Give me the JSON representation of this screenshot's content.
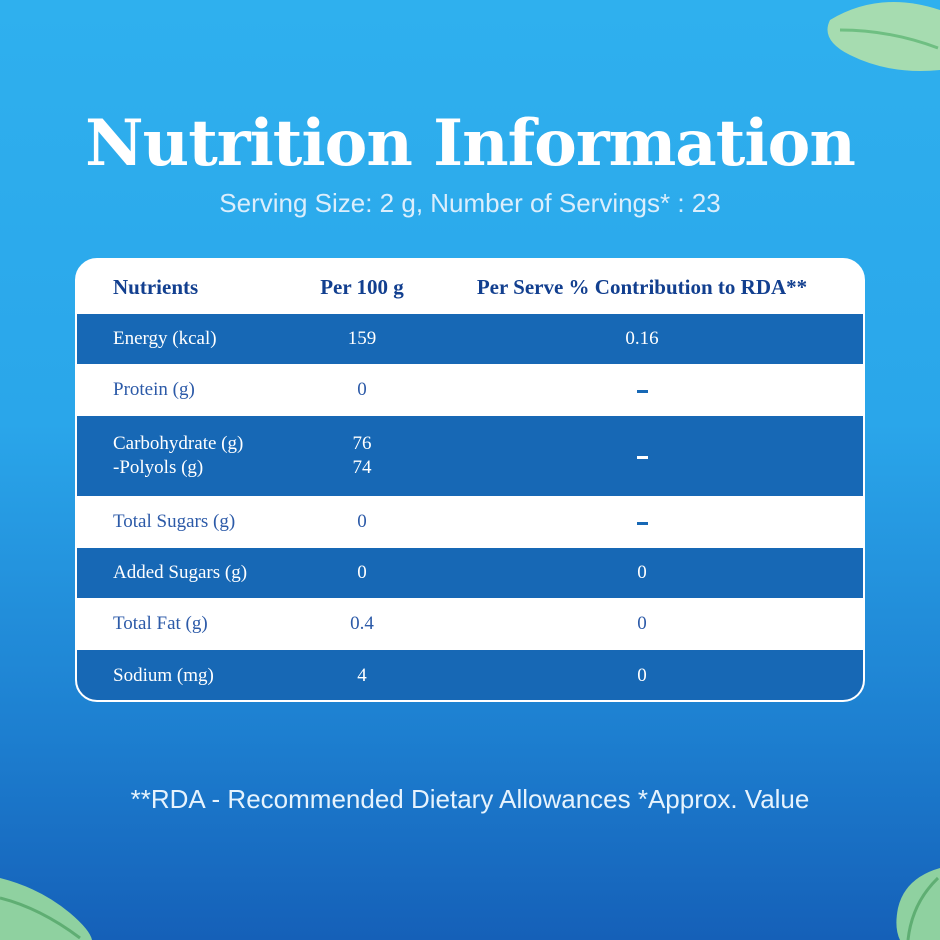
{
  "title": "Nutrition Information",
  "subtitle": "Serving Size: 2 g, Number of Servings* : 23",
  "table": {
    "headers": {
      "nutrients": "Nutrients",
      "per100": "Per 100 g",
      "rda": "Per Serve % Contribution to RDA**"
    },
    "rows": [
      {
        "name": "Energy (kcal)",
        "per100": "159",
        "rda": "0.16"
      },
      {
        "name": "Protein (g)",
        "per100": "0",
        "rda": "-"
      },
      {
        "name": "Carbohydrate (g)",
        "name2": "-Polyols (g)",
        "per100": "76",
        "per100_2": "74",
        "rda": "-"
      },
      {
        "name": "Total Sugars (g)",
        "per100": "0",
        "rda": "-"
      },
      {
        "name": "Added Sugars (g)",
        "per100": "0",
        "rda": "0"
      },
      {
        "name": "Total Fat (g)",
        "per100": "0.4",
        "rda": "0"
      },
      {
        "name": "Sodium (mg)",
        "per100": "4",
        "rda": "0"
      }
    ]
  },
  "footnote": "**RDA - Recommended Dietary Allowances *Approx. Value",
  "colors": {
    "background_top": "#2fb0ee",
    "background_bottom": "#1560b8",
    "row_dark": "#1768b5",
    "header_text": "#123f8f",
    "leaf": "#8fd1a0"
  }
}
